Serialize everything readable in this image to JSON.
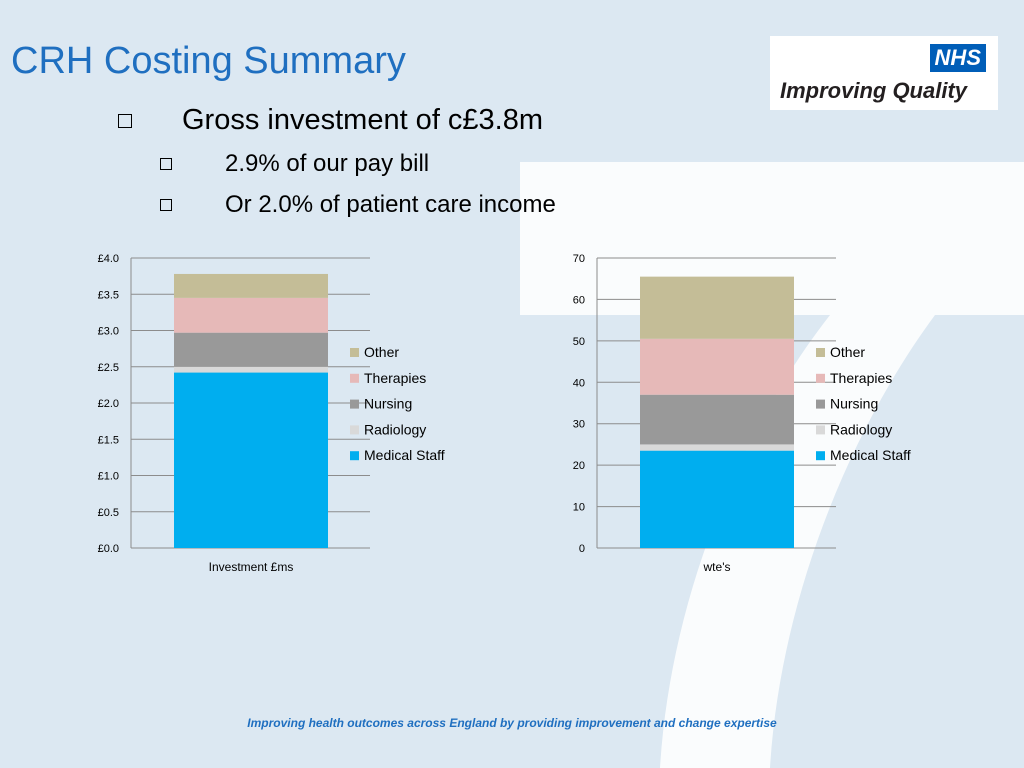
{
  "slide": {
    "title": "CRH Costing Summary",
    "bullets": [
      "Gross investment of c£3.8m",
      "2.9% of our pay bill",
      "Or 2.0% of patient care income"
    ],
    "logo": {
      "badge": "NHS",
      "text": "Improving Quality"
    },
    "footer": "Improving health outcomes across England by providing improvement and change expertise"
  },
  "colors": {
    "Medical Staff": "#00aeef",
    "Radiology": "#d9d9d9",
    "Nursing": "#999999",
    "Therapies": "#e6b9b8",
    "Other": "#c4bd97",
    "title": "#1f6fc0"
  },
  "chart_data": [
    {
      "type": "bar",
      "stacked": true,
      "categories": [
        "Investment £ms"
      ],
      "series": [
        {
          "name": "Medical Staff",
          "values": [
            2.42
          ]
        },
        {
          "name": "Radiology",
          "values": [
            0.08
          ]
        },
        {
          "name": "Nursing",
          "values": [
            0.47
          ]
        },
        {
          "name": "Therapies",
          "values": [
            0.48
          ]
        },
        {
          "name": "Other",
          "values": [
            0.33
          ]
        }
      ],
      "ylim": [
        0,
        4
      ],
      "yticks": [
        0,
        0.5,
        1,
        1.5,
        2,
        2.5,
        3,
        3.5,
        4
      ],
      "ytick_labels": [
        "£0.0",
        "£0.5",
        "£1.0",
        "£1.5",
        "£2.0",
        "£2.5",
        "£3.0",
        "£3.5",
        "£4.0"
      ],
      "legend": [
        "Other",
        "Therapies",
        "Nursing",
        "Radiology",
        "Medical Staff"
      ],
      "legend_position": "right",
      "grid": true,
      "xlabel": "",
      "ylabel": "",
      "title": ""
    },
    {
      "type": "bar",
      "stacked": true,
      "categories": [
        "wte's"
      ],
      "series": [
        {
          "name": "Medical Staff",
          "values": [
            23.5
          ]
        },
        {
          "name": "Radiology",
          "values": [
            1.5
          ]
        },
        {
          "name": "Nursing",
          "values": [
            12
          ]
        },
        {
          "name": "Therapies",
          "values": [
            13.5
          ]
        },
        {
          "name": "Other",
          "values": [
            15
          ]
        }
      ],
      "ylim": [
        0,
        70
      ],
      "yticks": [
        0,
        10,
        20,
        30,
        40,
        50,
        60,
        70
      ],
      "ytick_labels": [
        "0",
        "10",
        "20",
        "30",
        "40",
        "50",
        "60",
        "70"
      ],
      "legend": [
        "Other",
        "Therapies",
        "Nursing",
        "Radiology",
        "Medical Staff"
      ],
      "legend_position": "right",
      "grid": true,
      "xlabel": "",
      "ylabel": "",
      "title": ""
    }
  ]
}
